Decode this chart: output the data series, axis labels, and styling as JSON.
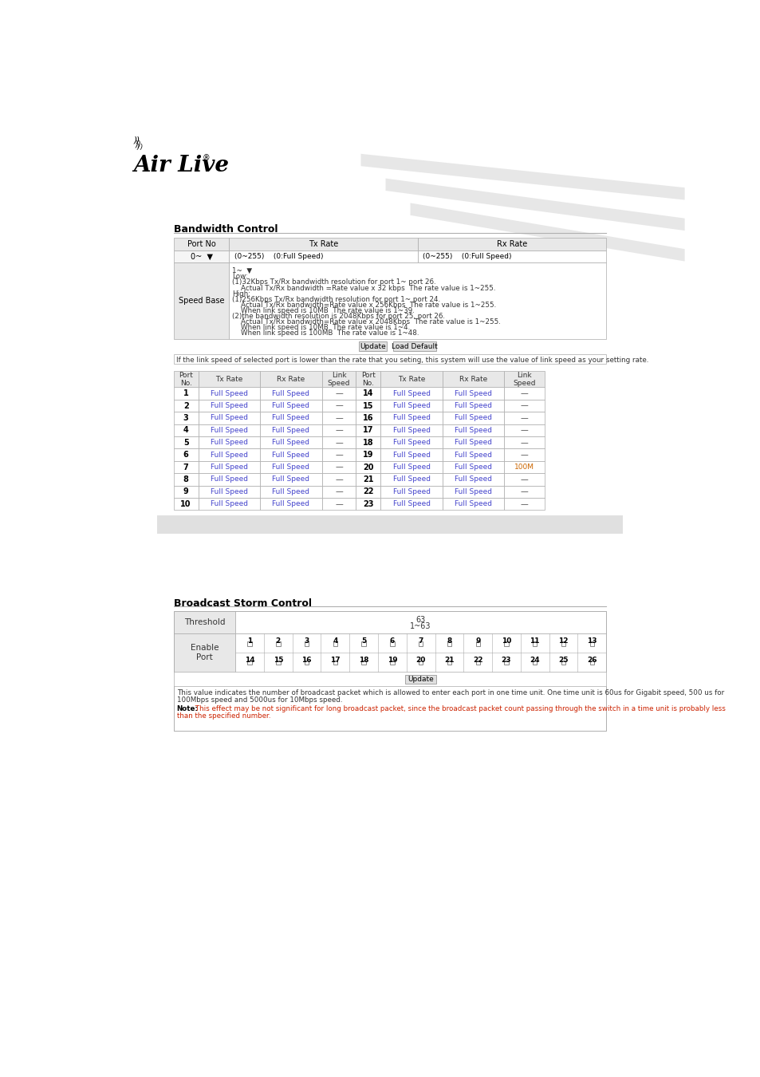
{
  "bg_color": "#ffffff",
  "section1_title": "Bandwidth Control",
  "section2_title": "Broadcast Storm Control",
  "header_bg": "#e8e8e8",
  "cell_bg_light": "#f0f0f0",
  "table_border": "#aaaaaa",
  "text_blue": "#4444cc",
  "text_orange": "#cc6600",
  "text_black": "#000000",
  "text_dark": "#444444",
  "gray_bar_bg": "#e0e0e0",
  "note_red": "#cc2200",
  "bw_header_cols": [
    "Port No",
    "Tx Rate",
    "Rx Rate"
  ],
  "speed_base_label": "Speed Base",
  "sb_lines": [
    [
      "1~  ▼",
      false
    ],
    [
      "Low:",
      false
    ],
    [
      "(1)32Kbps Tx/Rx bandwidth resolution for port 1~ port 26.",
      false
    ],
    [
      "    Actual Tx/Rx bandwidth =Rate value x 32 kbps  The rate value is 1~255.",
      false
    ],
    [
      "High:",
      false
    ],
    [
      "(1)256Kbps Tx/Rx bandwidth resolution for port 1~ port 24.",
      false
    ],
    [
      "    Actual Tx/Rx bandwidth=Rate value x 256Kbps  The rate value is 1~255.",
      false
    ],
    [
      "    When link speed is 10MB  The rate value is 1~39.",
      false
    ],
    [
      "(2)the bandwidth resolution is 2048Kbps for port 25, port 26.",
      false
    ],
    [
      "    Actual Tx/Rx bandwidth=Rate value x 2048Kbps  The rate value is 1~255.",
      false
    ],
    [
      "    When link speed is 10MB  The rate value is 1~4.",
      false
    ],
    [
      "    When link speed is 100MB  The rate value is 1~48.",
      false
    ]
  ],
  "update_btn": "Update",
  "load_default_btn": "Load Default",
  "footer_note": "If the link speed of selected port is lower than the rate that you seting, this system will use the value of link speed as your setting rate.",
  "port_rows": [
    [
      1,
      "Full Speed",
      "Full Speed",
      "——",
      14,
      "Full Speed",
      "Full Speed",
      "——"
    ],
    [
      2,
      "Full Speed",
      "Full Speed",
      "——",
      15,
      "Full Speed",
      "Full Speed",
      "——"
    ],
    [
      3,
      "Full Speed",
      "Full Speed",
      "——",
      16,
      "Full Speed",
      "Full Speed",
      "——"
    ],
    [
      4,
      "Full Speed",
      "Full Speed",
      "——",
      17,
      "Full Speed",
      "Full Speed",
      "——"
    ],
    [
      5,
      "Full Speed",
      "Full Speed",
      "——",
      18,
      "Full Speed",
      "Full Speed",
      "——"
    ],
    [
      6,
      "Full Speed",
      "Full Speed",
      "——",
      19,
      "Full Speed",
      "Full Speed",
      "——"
    ],
    [
      7,
      "Full Speed",
      "Full Speed",
      "——",
      20,
      "Full Speed",
      "Full Speed",
      "100M"
    ],
    [
      8,
      "Full Speed",
      "Full Speed",
      "——",
      21,
      "Full Speed",
      "Full Speed",
      "——"
    ],
    [
      9,
      "Full Speed",
      "Full Speed",
      "——",
      22,
      "Full Speed",
      "Full Speed",
      "——"
    ],
    [
      10,
      "Full Speed",
      "Full Speed",
      "——",
      23,
      "Full Speed",
      "Full Speed",
      "——"
    ]
  ],
  "bsc_threshold_label": "Threshold",
  "bsc_threshold_value": "63",
  "bsc_threshold_range": "1~63",
  "bsc_enable_label": "Enable\nPort",
  "bsc_ports_row1": [
    1,
    2,
    3,
    4,
    5,
    6,
    7,
    8,
    9,
    10,
    11,
    12,
    13
  ],
  "bsc_ports_row2": [
    14,
    15,
    16,
    17,
    18,
    19,
    20,
    21,
    22,
    23,
    24,
    25,
    26
  ],
  "bsc_note1a": "This value indicates the ",
  "bsc_note1b": "number",
  "bsc_note1c": " of broadcast packet which is allowed to enter each port in one time unit. One time unit is 60us for Gigabit speed, 500 us for",
  "bsc_note1d": "100Mbps speed and ",
  "bsc_note1e": "5000us",
  "bsc_note1f": " for 10Mbps speed.",
  "bsc_note2_prefix": "Note:",
  "bsc_note2_rest": " This effect may be not significant for long broadcast packet, since the ",
  "bsc_note2_rest2": "broadcast",
  "bsc_note2_rest3": " packet count ",
  "bsc_note2_rest4": "passing",
  "bsc_note2_rest5": " through the switch in a time unit is probably less",
  "bsc_note2_line2": "than the specified number."
}
